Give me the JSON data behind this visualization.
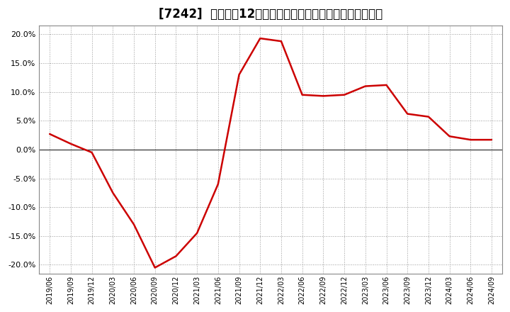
{
  "title": "[7242]  売上高の12か月移動合計の対前年同期増減率の推移",
  "line_color": "#cc0000",
  "bg_color": "#ffffff",
  "plot_bg_color": "#ffffff",
  "grid_color": "#999999",
  "ylim": [
    -0.215,
    0.215
  ],
  "yticks": [
    -0.2,
    -0.15,
    -0.1,
    -0.05,
    0.0,
    0.05,
    0.1,
    0.15,
    0.2
  ],
  "dates": [
    "2019/06",
    "2019/09",
    "2019/12",
    "2020/03",
    "2020/06",
    "2020/09",
    "2020/12",
    "2021/03",
    "2021/06",
    "2021/09",
    "2021/12",
    "2022/03",
    "2022/06",
    "2022/09",
    "2022/12",
    "2023/03",
    "2023/06",
    "2023/09",
    "2023/12",
    "2024/03",
    "2024/06",
    "2024/09"
  ],
  "values": [
    0.027,
    0.01,
    -0.005,
    -0.075,
    -0.13,
    -0.205,
    -0.185,
    -0.145,
    -0.06,
    0.13,
    0.193,
    0.188,
    0.095,
    0.093,
    0.095,
    0.11,
    0.112,
    0.062,
    0.057,
    0.023,
    0.017,
    0.017
  ],
  "title_fontsize": 12,
  "tick_fontsize": 8,
  "linewidth": 1.8
}
